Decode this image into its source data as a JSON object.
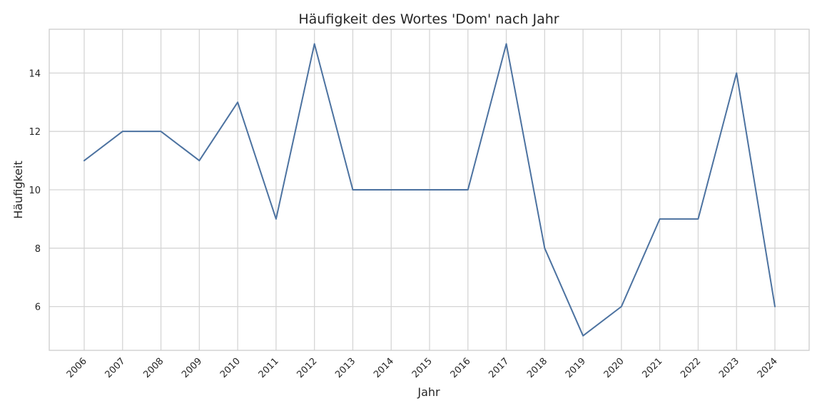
{
  "chart_data": {
    "type": "line",
    "title": "Häufigkeit des Wortes 'Dom' nach Jahr",
    "xlabel": "Jahr",
    "ylabel": "Häufigkeit",
    "x": [
      "2006",
      "2007",
      "2008",
      "2009",
      "2010",
      "2011",
      "2012",
      "2013",
      "2014",
      "2015",
      "2016",
      "2017",
      "2018",
      "2019",
      "2020",
      "2021",
      "2022",
      "2023",
      "2024"
    ],
    "series": [
      {
        "values": [
          11,
          12,
          12,
          11,
          13,
          9,
          15,
          10,
          10,
          10,
          10,
          15,
          8,
          5,
          6,
          9,
          9,
          14,
          6
        ],
        "color": "#4c72a0"
      }
    ],
    "yticks": [
      6,
      8,
      10,
      12,
      14
    ],
    "ylim": [
      4.5,
      15.5
    ],
    "grid": true,
    "legend": "none"
  }
}
